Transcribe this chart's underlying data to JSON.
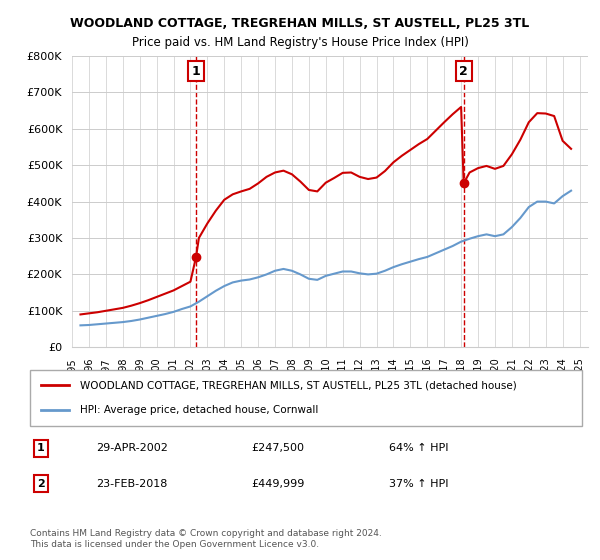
{
  "title": "WOODLAND COTTAGE, TREGREHAN MILLS, ST AUSTELL, PL25 3TL",
  "subtitle": "Price paid vs. HM Land Registry's House Price Index (HPI)",
  "ylabel": "",
  "ylim": [
    0,
    800000
  ],
  "yticks": [
    0,
    100000,
    200000,
    300000,
    400000,
    500000,
    600000,
    700000,
    800000
  ],
  "ytick_labels": [
    "£0",
    "£100K",
    "£200K",
    "£300K",
    "£400K",
    "£500K",
    "£600K",
    "£700K",
    "£800K"
  ],
  "red_color": "#cc0000",
  "blue_color": "#6699cc",
  "sale1_date_num": 2002.33,
  "sale1_price": 247500,
  "sale2_date_num": 2018.15,
  "sale2_price": 449999,
  "legend_label_red": "WOODLAND COTTAGE, TREGREHAN MILLS, ST AUSTELL, PL25 3TL (detached house)",
  "legend_label_blue": "HPI: Average price, detached house, Cornwall",
  "footnote": "Contains HM Land Registry data © Crown copyright and database right 2024.\nThis data is licensed under the Open Government Licence v3.0.",
  "table_rows": [
    {
      "num": "1",
      "date": "29-APR-2002",
      "price": "£247,500",
      "hpi": "64% ↑ HPI"
    },
    {
      "num": "2",
      "date": "23-FEB-2018",
      "price": "£449,999",
      "hpi": "37% ↑ HPI"
    }
  ],
  "hpi_data": {
    "years": [
      1995.5,
      1996.0,
      1996.5,
      1997.0,
      1997.5,
      1998.0,
      1998.5,
      1999.0,
      1999.5,
      2000.0,
      2000.5,
      2001.0,
      2001.5,
      2002.0,
      2002.5,
      2003.0,
      2003.5,
      2004.0,
      2004.5,
      2005.0,
      2005.5,
      2006.0,
      2006.5,
      2007.0,
      2007.5,
      2008.0,
      2008.5,
      2009.0,
      2009.5,
      2010.0,
      2010.5,
      2011.0,
      2011.5,
      2012.0,
      2012.5,
      2013.0,
      2013.5,
      2014.0,
      2014.5,
      2015.0,
      2015.5,
      2016.0,
      2016.5,
      2017.0,
      2017.5,
      2018.0,
      2018.5,
      2019.0,
      2019.5,
      2020.0,
      2020.5,
      2021.0,
      2021.5,
      2022.0,
      2022.5,
      2023.0,
      2023.5,
      2024.0,
      2024.5
    ],
    "values": [
      60000,
      61000,
      63000,
      65000,
      67000,
      69000,
      72000,
      76000,
      81000,
      86000,
      91000,
      97000,
      105000,
      112000,
      125000,
      140000,
      155000,
      168000,
      178000,
      183000,
      186000,
      192000,
      200000,
      210000,
      215000,
      210000,
      200000,
      188000,
      185000,
      196000,
      202000,
      208000,
      208000,
      203000,
      200000,
      202000,
      210000,
      220000,
      228000,
      235000,
      242000,
      248000,
      258000,
      268000,
      278000,
      290000,
      298000,
      305000,
      310000,
      305000,
      310000,
      330000,
      355000,
      385000,
      400000,
      400000,
      395000,
      415000,
      430000
    ]
  },
  "red_data": {
    "years": [
      1995.5,
      1996.0,
      1996.5,
      1997.0,
      1997.5,
      1998.0,
      1998.5,
      1999.0,
      1999.5,
      2000.0,
      2000.5,
      2001.0,
      2001.5,
      2002.0,
      2002.33,
      2002.5,
      2003.0,
      2003.5,
      2004.0,
      2004.5,
      2005.0,
      2005.5,
      2006.0,
      2006.5,
      2007.0,
      2007.5,
      2008.0,
      2008.5,
      2009.0,
      2009.5,
      2010.0,
      2010.5,
      2011.0,
      2011.5,
      2012.0,
      2012.5,
      2013.0,
      2013.5,
      2014.0,
      2014.5,
      2015.0,
      2015.5,
      2016.0,
      2016.5,
      2017.0,
      2017.5,
      2018.0,
      2018.15,
      2018.5,
      2019.0,
      2019.5,
      2020.0,
      2020.5,
      2021.0,
      2021.5,
      2022.0,
      2022.5,
      2023.0,
      2023.5,
      2024.0,
      2024.5
    ],
    "values": [
      90000,
      93000,
      96000,
      100000,
      104000,
      108000,
      114000,
      121000,
      129000,
      138000,
      147000,
      156000,
      168000,
      180000,
      247500,
      300000,
      340000,
      375000,
      405000,
      420000,
      428000,
      435000,
      450000,
      468000,
      480000,
      485000,
      475000,
      455000,
      432000,
      428000,
      452000,
      465000,
      479000,
      480000,
      468000,
      462000,
      466000,
      484000,
      508000,
      526000,
      542000,
      558000,
      572000,
      595000,
      618000,
      640000,
      660000,
      449999,
      480000,
      492000,
      498000,
      490000,
      498000,
      530000,
      570000,
      618000,
      643000,
      642000,
      635000,
      567000,
      545000
    ]
  }
}
